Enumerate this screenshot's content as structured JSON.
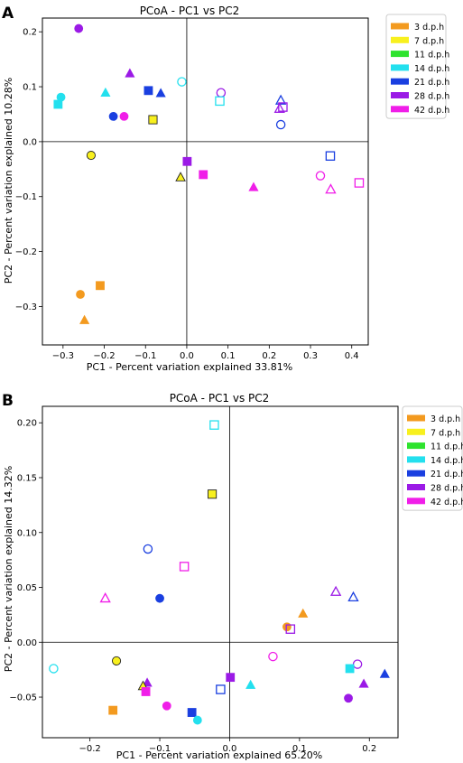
{
  "colors": {
    "3": "#f39a1f",
    "7": "#f8f01e",
    "11": "#2ee32e",
    "14": "#23e0ee",
    "21": "#1a3fe0",
    "28": "#9b1ae6",
    "42": "#f01ee8",
    "axis": "#000000",
    "legend_border": "#cccccc"
  },
  "legend": {
    "items": [
      {
        "key": "3",
        "label": "3 d.p.h"
      },
      {
        "key": "7",
        "label": "7 d.p.h"
      },
      {
        "key": "11",
        "label": "11 d.p.h"
      },
      {
        "key": "14",
        "label": "14 d.p.h"
      },
      {
        "key": "21",
        "label": "21 d.p.h"
      },
      {
        "key": "28",
        "label": "28 d.p.h"
      },
      {
        "key": "42",
        "label": "42 d.p.h"
      }
    ]
  },
  "chart_data": [
    {
      "type": "scatter",
      "panel_label": "A",
      "title": "PCoA - PC1 vs PC2",
      "xlabel": "PC1 - Percent variation explained 33.81%",
      "ylabel": "PC2 - Percent variation explained 10.28%",
      "xlim": [
        -0.35,
        0.44
      ],
      "ylim": [
        -0.37,
        0.225
      ],
      "xticks": [
        {
          "v": -0.3,
          "label": "−0.3"
        },
        {
          "v": -0.2,
          "label": "−0.2"
        },
        {
          "v": -0.1,
          "label": "−0.1"
        },
        {
          "v": 0.0,
          "label": "0.0"
        },
        {
          "v": 0.1,
          "label": "0.1"
        },
        {
          "v": 0.2,
          "label": "0.2"
        },
        {
          "v": 0.3,
          "label": "0.3"
        },
        {
          "v": 0.4,
          "label": "0.4"
        }
      ],
      "yticks": [
        {
          "v": 0.2,
          "label": "0.2"
        },
        {
          "v": 0.1,
          "label": "0.1"
        },
        {
          "v": 0.0,
          "label": "0.0"
        },
        {
          "v": -0.1,
          "label": "−0.1"
        },
        {
          "v": -0.2,
          "label": "−0.2"
        },
        {
          "v": -0.3,
          "label": "−0.3"
        }
      ],
      "points": [
        {
          "x": -0.262,
          "y": 0.206,
          "c": "28",
          "s": "circle",
          "f": true
        },
        {
          "x": -0.312,
          "y": 0.068,
          "c": "14",
          "s": "square",
          "f": true
        },
        {
          "x": -0.305,
          "y": 0.081,
          "c": "14",
          "s": "circle",
          "f": true
        },
        {
          "x": -0.197,
          "y": 0.089,
          "c": "14",
          "s": "triangle",
          "f": true
        },
        {
          "x": -0.178,
          "y": 0.046,
          "c": "21",
          "s": "circle",
          "f": true
        },
        {
          "x": -0.138,
          "y": 0.124,
          "c": "28",
          "s": "triangle",
          "f": true
        },
        {
          "x": -0.152,
          "y": 0.046,
          "c": "42",
          "s": "circle",
          "f": true
        },
        {
          "x": -0.093,
          "y": 0.093,
          "c": "21",
          "s": "square",
          "f": true
        },
        {
          "x": -0.082,
          "y": 0.04,
          "c": "7",
          "s": "square",
          "f": true,
          "e": true
        },
        {
          "x": -0.063,
          "y": 0.088,
          "c": "21",
          "s": "triangle",
          "f": true
        },
        {
          "x": -0.012,
          "y": 0.109,
          "c": "14",
          "s": "circle",
          "f": false
        },
        {
          "x": 0.083,
          "y": 0.089,
          "c": "28",
          "s": "circle",
          "f": false
        },
        {
          "x": 0.08,
          "y": 0.074,
          "c": "14",
          "s": "square",
          "f": false
        },
        {
          "x": 0.228,
          "y": 0.075,
          "c": "21",
          "s": "triangle",
          "f": false
        },
        {
          "x": 0.225,
          "y": 0.06,
          "c": "28",
          "s": "triangle",
          "f": false
        },
        {
          "x": 0.233,
          "y": 0.063,
          "c": "28",
          "s": "square",
          "f": false
        },
        {
          "x": 0.228,
          "y": 0.031,
          "c": "21",
          "s": "circle",
          "f": false
        },
        {
          "x": -0.232,
          "y": -0.025,
          "c": "7",
          "s": "circle",
          "f": true,
          "e": true
        },
        {
          "x": 0.001,
          "y": -0.036,
          "c": "28",
          "s": "square",
          "f": true
        },
        {
          "x": -0.015,
          "y": -0.065,
          "c": "7",
          "s": "triangle",
          "f": true,
          "e": true
        },
        {
          "x": 0.04,
          "y": -0.06,
          "c": "42",
          "s": "square",
          "f": true
        },
        {
          "x": 0.162,
          "y": -0.083,
          "c": "42",
          "s": "triangle",
          "f": true
        },
        {
          "x": 0.348,
          "y": -0.026,
          "c": "21",
          "s": "square",
          "f": false
        },
        {
          "x": 0.324,
          "y": -0.062,
          "c": "42",
          "s": "circle",
          "f": false
        },
        {
          "x": 0.349,
          "y": -0.087,
          "c": "42",
          "s": "triangle",
          "f": false
        },
        {
          "x": 0.418,
          "y": -0.075,
          "c": "42",
          "s": "square",
          "f": false
        },
        {
          "x": -0.258,
          "y": -0.278,
          "c": "3",
          "s": "circle",
          "f": true
        },
        {
          "x": -0.21,
          "y": -0.262,
          "c": "3",
          "s": "square",
          "f": true
        },
        {
          "x": -0.248,
          "y": -0.325,
          "c": "3",
          "s": "triangle",
          "f": true
        }
      ]
    },
    {
      "type": "scatter",
      "panel_label": "B",
      "title": "PCoA - PC1 vs PC2",
      "xlabel": "PC1 - Percent variation explained 65.20%",
      "ylabel": "PC2 - Percent variation explained 14.32%",
      "xlim": [
        -0.268,
        0.241
      ],
      "ylim": [
        -0.087,
        0.215
      ],
      "xticks": [
        {
          "v": -0.2,
          "label": "−0.2"
        },
        {
          "v": -0.1,
          "label": "−0.1"
        },
        {
          "v": 0.0,
          "label": "0.0"
        },
        {
          "v": 0.1,
          "label": "0.1"
        },
        {
          "v": 0.2,
          "label": "0.2"
        }
      ],
      "yticks": [
        {
          "v": 0.2,
          "label": "0.20"
        },
        {
          "v": 0.15,
          "label": "0.15"
        },
        {
          "v": 0.1,
          "label": "0.10"
        },
        {
          "v": 0.05,
          "label": "0.05"
        },
        {
          "v": 0.0,
          "label": "0.00"
        },
        {
          "v": -0.05,
          "label": "−0.05"
        }
      ],
      "points": [
        {
          "x": -0.022,
          "y": 0.198,
          "c": "14",
          "s": "square",
          "f": false
        },
        {
          "x": -0.025,
          "y": 0.135,
          "c": "7",
          "s": "square",
          "f": true,
          "e": true
        },
        {
          "x": -0.117,
          "y": 0.085,
          "c": "21",
          "s": "circle",
          "f": false
        },
        {
          "x": -0.065,
          "y": 0.069,
          "c": "42",
          "s": "square",
          "f": false
        },
        {
          "x": -0.178,
          "y": 0.04,
          "c": "42",
          "s": "triangle",
          "f": false
        },
        {
          "x": -0.1,
          "y": 0.04,
          "c": "21",
          "s": "circle",
          "f": true
        },
        {
          "x": 0.152,
          "y": 0.046,
          "c": "28",
          "s": "triangle",
          "f": false
        },
        {
          "x": 0.177,
          "y": 0.041,
          "c": "21",
          "s": "triangle",
          "f": false
        },
        {
          "x": 0.105,
          "y": 0.026,
          "c": "3",
          "s": "triangle",
          "f": true
        },
        {
          "x": 0.082,
          "y": 0.014,
          "c": "3",
          "s": "circle",
          "f": true
        },
        {
          "x": 0.087,
          "y": 0.012,
          "c": "28",
          "s": "square",
          "f": false
        },
        {
          "x": -0.252,
          "y": -0.024,
          "c": "14",
          "s": "circle",
          "f": false
        },
        {
          "x": -0.162,
          "y": -0.017,
          "c": "7",
          "s": "circle",
          "f": true,
          "e": true
        },
        {
          "x": 0.062,
          "y": -0.013,
          "c": "42",
          "s": "circle",
          "f": false
        },
        {
          "x": 0.183,
          "y": -0.02,
          "c": "28",
          "s": "circle",
          "f": false
        },
        {
          "x": 0.172,
          "y": -0.024,
          "c": "14",
          "s": "square",
          "f": true
        },
        {
          "x": 0.222,
          "y": -0.029,
          "c": "21",
          "s": "triangle",
          "f": true
        },
        {
          "x": 0.001,
          "y": -0.032,
          "c": "28",
          "s": "square",
          "f": true
        },
        {
          "x": -0.118,
          "y": -0.037,
          "c": "28",
          "s": "triangle",
          "f": true
        },
        {
          "x": -0.124,
          "y": -0.04,
          "c": "7",
          "s": "triangle",
          "f": true,
          "e": true
        },
        {
          "x": -0.12,
          "y": -0.045,
          "c": "42",
          "s": "square",
          "f": true
        },
        {
          "x": 0.03,
          "y": -0.039,
          "c": "14",
          "s": "triangle",
          "f": true
        },
        {
          "x": -0.013,
          "y": -0.043,
          "c": "21",
          "s": "square",
          "f": false
        },
        {
          "x": 0.192,
          "y": -0.038,
          "c": "28",
          "s": "triangle",
          "f": true
        },
        {
          "x": 0.17,
          "y": -0.051,
          "c": "28",
          "s": "circle",
          "f": true
        },
        {
          "x": -0.09,
          "y": -0.058,
          "c": "42",
          "s": "circle",
          "f": true
        },
        {
          "x": -0.167,
          "y": -0.062,
          "c": "3",
          "s": "square",
          "f": true
        },
        {
          "x": -0.054,
          "y": -0.064,
          "c": "21",
          "s": "square",
          "f": true
        },
        {
          "x": -0.046,
          "y": -0.071,
          "c": "14",
          "s": "circle",
          "f": true
        }
      ]
    }
  ]
}
